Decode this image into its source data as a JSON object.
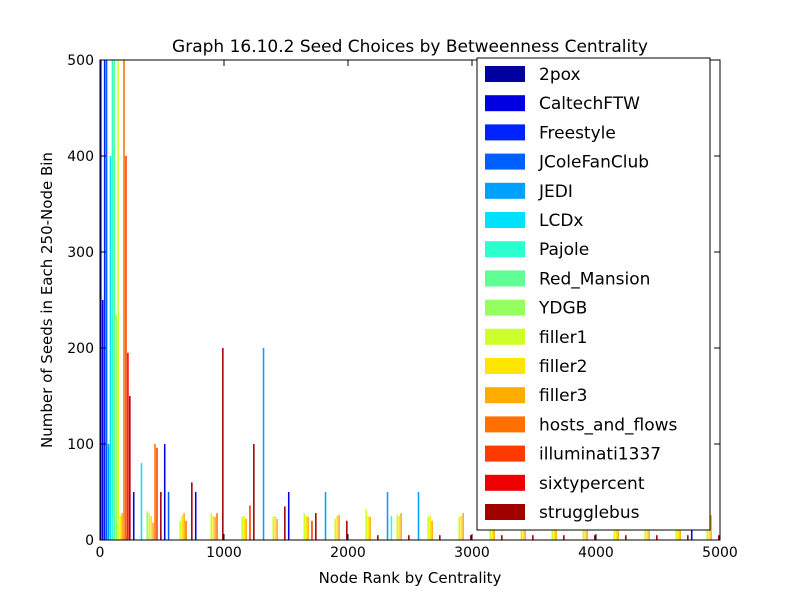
{
  "chart_data": {
    "type": "bar",
    "title": "Graph 16.10.2 Seed Choices by Betweenness Centrality",
    "xlabel": "Node Rank by Centrality",
    "ylabel": "Number of Seeds in Each 250-Node Bin",
    "xlim": [
      0,
      5000
    ],
    "ylim": [
      0,
      500
    ],
    "xticks": [
      0,
      1000,
      2000,
      3000,
      4000,
      5000
    ],
    "yticks": [
      0,
      100,
      200,
      300,
      400,
      500
    ],
    "bin_width": 250,
    "bin_starts": [
      0,
      250,
      500,
      750,
      1000,
      1250,
      1500,
      1750,
      2000,
      2250,
      2500,
      2750,
      3000,
      3250,
      3500,
      3750,
      4000,
      4250,
      4500,
      4750
    ],
    "legend_position": "upper right",
    "grid": false,
    "series": [
      {
        "name": "2pox",
        "color": "#0000a0",
        "values": [
          500,
          0,
          0,
          0,
          0,
          0,
          0,
          0,
          0,
          0,
          0,
          0,
          0,
          0,
          0,
          0,
          0,
          0,
          0,
          0
        ]
      },
      {
        "name": "CaltechFTW",
        "color": "#0000e0",
        "values": [
          250,
          50,
          100,
          50,
          0,
          0,
          50,
          0,
          0,
          0,
          0,
          0,
          0,
          0,
          0,
          0,
          0,
          0,
          0,
          50
        ]
      },
      {
        "name": "Freestyle",
        "color": "#0022ff",
        "values": [
          500,
          0,
          0,
          0,
          0,
          0,
          0,
          0,
          0,
          0,
          0,
          0,
          0,
          0,
          0,
          0,
          0,
          0,
          0,
          0
        ]
      },
      {
        "name": "JColeFanClub",
        "color": "#0060ff",
        "values": [
          500,
          0,
          50,
          0,
          0,
          0,
          0,
          0,
          0,
          0,
          0,
          0,
          0,
          0,
          0,
          0,
          0,
          0,
          0,
          0
        ]
      },
      {
        "name": "JEDI",
        "color": "#00a0ff",
        "values": [
          100,
          0,
          0,
          0,
          0,
          200,
          0,
          50,
          0,
          50,
          50,
          0,
          0,
          0,
          0,
          0,
          0,
          0,
          0,
          0
        ]
      },
      {
        "name": "LCDx",
        "color": "#00e0ff",
        "values": [
          400,
          80,
          0,
          0,
          0,
          0,
          0,
          0,
          0,
          0,
          0,
          0,
          0,
          0,
          0,
          0,
          0,
          0,
          0,
          0
        ]
      },
      {
        "name": "Pajole",
        "color": "#2affcd",
        "values": [
          500,
          0,
          0,
          0,
          0,
          0,
          0,
          0,
          0,
          25,
          0,
          0,
          0,
          0,
          0,
          0,
          0,
          0,
          0,
          0
        ]
      },
      {
        "name": "Red_Mansion",
        "color": "#60ff96",
        "values": [
          500,
          0,
          0,
          0,
          0,
          0,
          0,
          0,
          0,
          0,
          0,
          0,
          0,
          0,
          0,
          0,
          0,
          0,
          0,
          0
        ]
      },
      {
        "name": "YDGB",
        "color": "#96ff60",
        "values": [
          235,
          30,
          0,
          0,
          0,
          0,
          0,
          0,
          0,
          0,
          0,
          0,
          0,
          0,
          0,
          0,
          0,
          0,
          0,
          0
        ]
      },
      {
        "name": "filler1",
        "color": "#cdff2a",
        "values": [
          500,
          28,
          20,
          28,
          24,
          24,
          28,
          22,
          32,
          26,
          24,
          24,
          26,
          26,
          24,
          26,
          24,
          24,
          26,
          24
        ]
      },
      {
        "name": "filler2",
        "color": "#ffe600",
        "values": [
          25,
          25,
          25,
          25,
          25,
          25,
          25,
          25,
          25,
          25,
          25,
          25,
          25,
          25,
          25,
          25,
          25,
          25,
          25,
          25
        ]
      },
      {
        "name": "filler3",
        "color": "#ffab00",
        "values": [
          28,
          18,
          28,
          24,
          22,
          22,
          24,
          26,
          24,
          28,
          20,
          28,
          22,
          24,
          26,
          24,
          22,
          24,
          26,
          26
        ]
      },
      {
        "name": "hosts_and_flows",
        "color": "#ff7000",
        "values": [
          500,
          100,
          20,
          28,
          0,
          0,
          0,
          0,
          0,
          0,
          0,
          0,
          0,
          0,
          0,
          0,
          0,
          0,
          0,
          0
        ]
      },
      {
        "name": "illuminati1337",
        "color": "#ff3a00",
        "values": [
          400,
          96,
          0,
          0,
          36,
          0,
          20,
          0,
          0,
          0,
          0,
          0,
          0,
          0,
          0,
          0,
          0,
          0,
          0,
          0
        ]
      },
      {
        "name": "sixtypercent",
        "color": "#ee0000",
        "values": [
          195,
          0,
          0,
          0,
          0,
          0,
          0,
          0,
          0,
          0,
          0,
          0,
          0,
          0,
          0,
          0,
          0,
          0,
          0,
          0
        ]
      },
      {
        "name": "strugglebus",
        "color": "#a00000",
        "values": [
          150,
          50,
          60,
          200,
          100,
          35,
          28,
          20,
          5,
          5,
          5,
          5,
          5,
          5,
          5,
          5,
          5,
          5,
          5,
          5
        ]
      }
    ]
  }
}
